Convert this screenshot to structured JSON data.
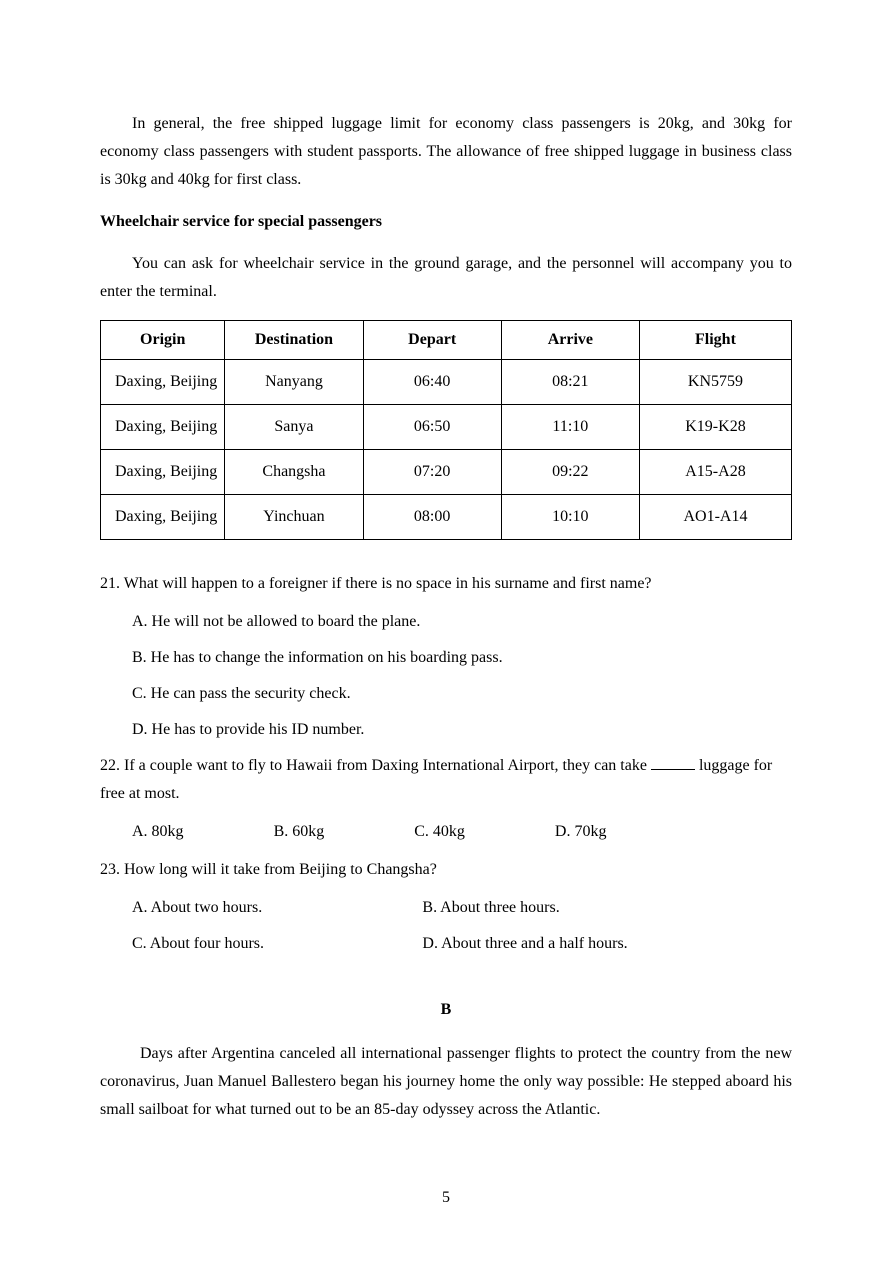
{
  "page_number": "5",
  "paragraphs": {
    "p1": "In general, the free shipped luggage limit for economy class passengers is 20kg, and 30kg for economy class passengers with student passports. The allowance of free shipped luggage in business class is 30kg and 40kg for first class.",
    "h1": "Wheelchair service for special passengers",
    "p2": "You can ask for wheelchair service in the ground garage, and the personnel will accompany you to enter the terminal."
  },
  "table": {
    "headers": [
      "Origin",
      "Destination",
      "Depart",
      "Arrive",
      "Flight"
    ],
    "rows": [
      [
        "Daxing, Beijing",
        "Nanyang",
        "06:40",
        "08:21",
        "KN5759"
      ],
      [
        "Daxing, Beijing",
        "Sanya",
        "06:50",
        "11:10",
        "K19-K28"
      ],
      [
        "Daxing, Beijing",
        "Changsha",
        "07:20",
        "09:22",
        "A15-A28"
      ],
      [
        "Daxing, Beijing",
        "Yinchuan",
        "08:00",
        "10:10",
        "AO1-A14"
      ]
    ],
    "col_widths": [
      "18%",
      "20%",
      "20%",
      "20%",
      "22%"
    ]
  },
  "q21": {
    "stem": "21. What will happen to a foreigner if there is no space in his surname and first name?",
    "A": "A. He will not be allowed to board the plane.",
    "B": "B. He has to change the information on his boarding pass.",
    "C": "C. He can pass the security check.",
    "D": "D. He has to provide his ID number."
  },
  "q22": {
    "stem_pre": "22. If a couple want to fly to Hawaii from Daxing International Airport, they can take ",
    "stem_post": " luggage for free at most.",
    "A": "A. 80kg",
    "B": "B. 60kg",
    "C": "C. 40kg",
    "D": "D. 70kg"
  },
  "q23": {
    "stem": "23. How long will it take from Beijing to Changsha?",
    "A": "A. About two hours.",
    "B": "B. About three hours.",
    "C": "C. About four hours.",
    "D": "D. About three and a half hours."
  },
  "section_label": "B",
  "passage_b": "Days after Argentina canceled all international passenger flights to protect the country from the new coronavirus, Juan Manuel Ballestero began his journey home the only way possible: He stepped aboard his small sailboat for what turned out to be an 85-day odyssey across the Atlantic."
}
